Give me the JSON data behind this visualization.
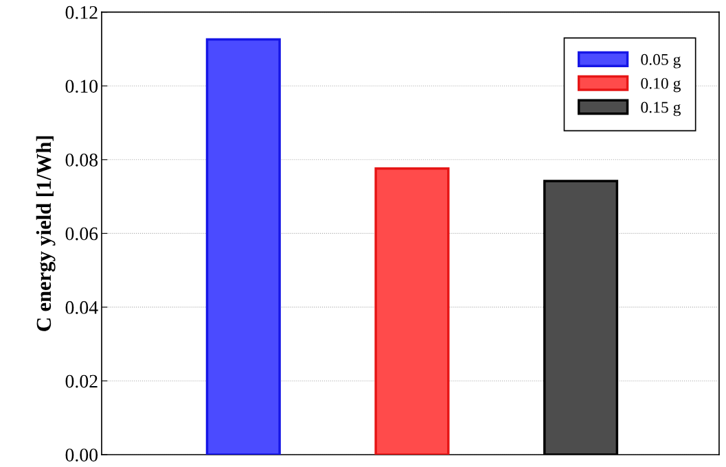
{
  "chart_data": {
    "type": "bar",
    "ylabel": "C energy yield [1/Wh]",
    "categories": [
      null,
      null,
      null
    ],
    "series": [
      {
        "name": "0.05 g",
        "color": "#4b4bff",
        "values": [
          0.1126,
          null,
          null
        ]
      },
      {
        "name": "0.10 g",
        "color": "#ff4b4b",
        "values": [
          null,
          0.0776,
          null
        ]
      },
      {
        "name": "0.15 g",
        "color": "#4d4d4d",
        "values": [
          null,
          null,
          0.0742
        ]
      }
    ],
    "ylim": [
      0,
      0.12
    ],
    "yticks": [
      {
        "value": 0,
        "label": "0.00"
      },
      {
        "value": 0.02,
        "label": "0.02"
      },
      {
        "value": 0.04,
        "label": "0.04"
      },
      {
        "value": 0.06,
        "label": "0.06"
      },
      {
        "value": 0.08,
        "label": "0.08"
      },
      {
        "value": 0.1,
        "label": "0.10"
      },
      {
        "value": 0.12,
        "label": "0.12"
      }
    ],
    "grid": "y",
    "legend": "top right",
    "tick_labels": "y"
  }
}
